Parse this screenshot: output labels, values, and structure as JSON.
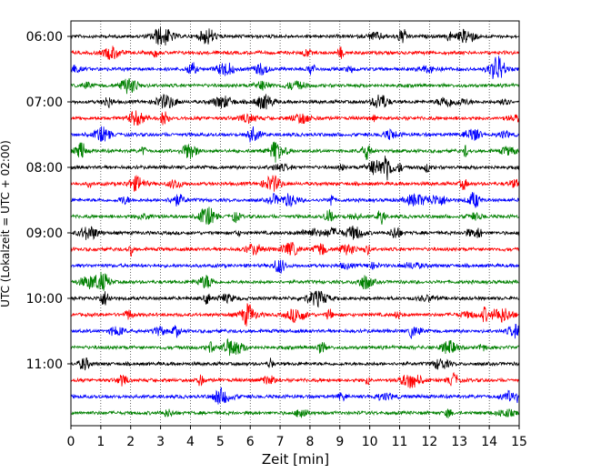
{
  "chart_data": {
    "type": "line",
    "subtype": "helicorder",
    "xlabel": "Zeit  [min]",
    "ylabel": "UTC (Lokalzeit = UTC + 02:00)",
    "xlim": [
      0,
      15
    ],
    "x_ticks": [
      "0",
      "1",
      "2",
      "3",
      "4",
      "5",
      "6",
      "7",
      "8",
      "9",
      "10",
      "11",
      "12",
      "13",
      "14",
      "15"
    ],
    "y_tick_labels": [
      "06:00",
      "07:00",
      "08:00",
      "09:00",
      "10:00",
      "11:00"
    ],
    "grid": "vertical dotted",
    "trace_colors": [
      "#000000",
      "#ff0000",
      "#0000ff",
      "#008000"
    ],
    "trace_start_times": [
      "06:00",
      "06:15",
      "06:30",
      "06:45",
      "07:00",
      "07:15",
      "07:30",
      "07:45",
      "08:00",
      "08:15",
      "08:30",
      "08:45",
      "09:00",
      "09:15",
      "09:30",
      "09:45",
      "10:00",
      "10:15",
      "10:30",
      "10:45",
      "11:00",
      "11:15",
      "11:30",
      "11:45"
    ],
    "minutes_per_line": 15
  }
}
